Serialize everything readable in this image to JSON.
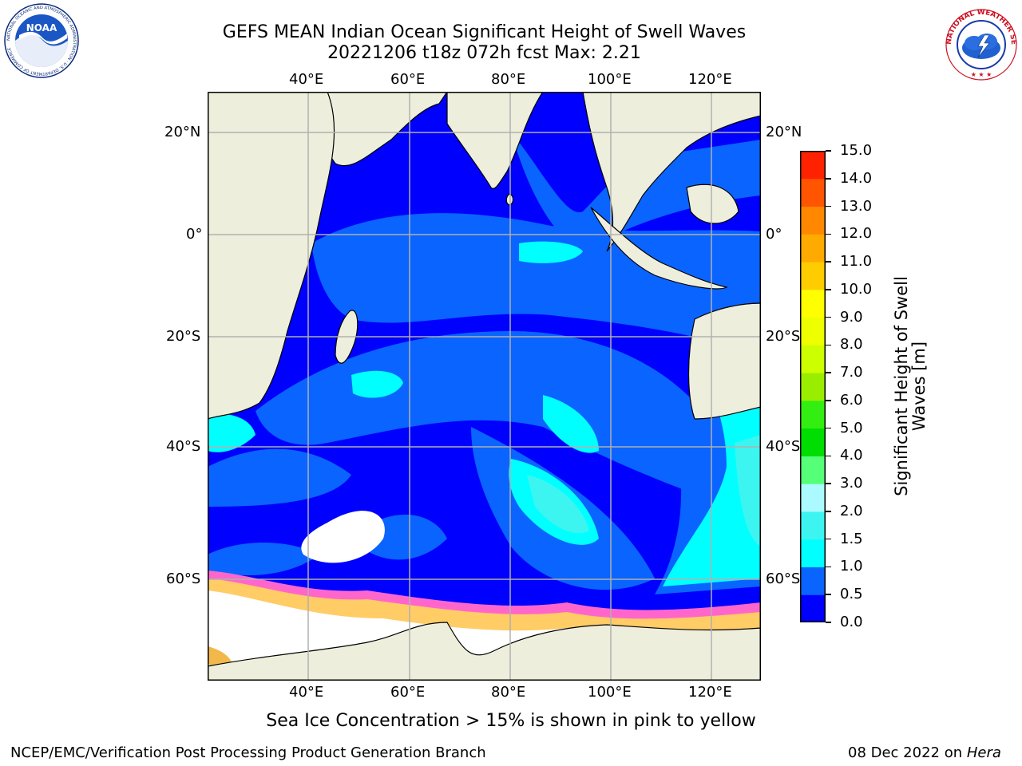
{
  "title": {
    "line1": "GEFS MEAN Indian Ocean Significant Height of Swell Waves",
    "line2": "20221206 t18z 072h fcst   Max: 2.21"
  },
  "map": {
    "top_lon_labels": [
      "40°E",
      "60°E",
      "80°E",
      "100°E",
      "120°E"
    ],
    "bottom_lon_labels": [
      "40°E",
      "60°E",
      "80°E",
      "100°E",
      "120°E"
    ],
    "left_lat_labels": [
      "20°N",
      "0°",
      "20°S",
      "40°S",
      "60°S"
    ],
    "right_lat_labels": [
      "20°N",
      "0°",
      "20°S",
      "40°S",
      "60°S"
    ],
    "colors": {
      "land": "#eeeedd",
      "ice_white": "#ffffff",
      "grid": "#b0b0b0"
    }
  },
  "colorbar": {
    "title": "Significant Height of Swell Waves [m]",
    "ticks": [
      "0.0",
      "0.5",
      "1.0",
      "1.5",
      "2.0",
      "3.0",
      "4.0",
      "5.0",
      "6.0",
      "7.0",
      "8.0",
      "9.0",
      "10.0",
      "11.0",
      "12.0",
      "13.0",
      "14.0",
      "15.0"
    ],
    "colors": [
      "#0000ff",
      "#0a64ff",
      "#00ffff",
      "#3cf5f0",
      "#aafaff",
      "#55ff77",
      "#00dd00",
      "#33ee11",
      "#99ee00",
      "#ccff00",
      "#eeff00",
      "#ffff00",
      "#ffcc00",
      "#ffaa00",
      "#ff8800",
      "#ff5500",
      "#ff2200",
      "#ff0000"
    ]
  },
  "caption": "Sea Ice Concentration > 15% is shown in pink to yellow",
  "footer": {
    "left": "NCEP/EMC/Verification Post Processing Product Generation Branch",
    "right_prefix": "08 Dec 2022 on ",
    "right_host": "Hera"
  },
  "logos": {
    "noaa_text": "NOAA",
    "noaa_ring": "NATIONAL OCEANIC AND ATMOSPHERIC ADMINISTRATION · U.S. DEPARTMENT OF COMMERCE",
    "nws_ring": "NATIONAL WEATHER SERVICE"
  }
}
